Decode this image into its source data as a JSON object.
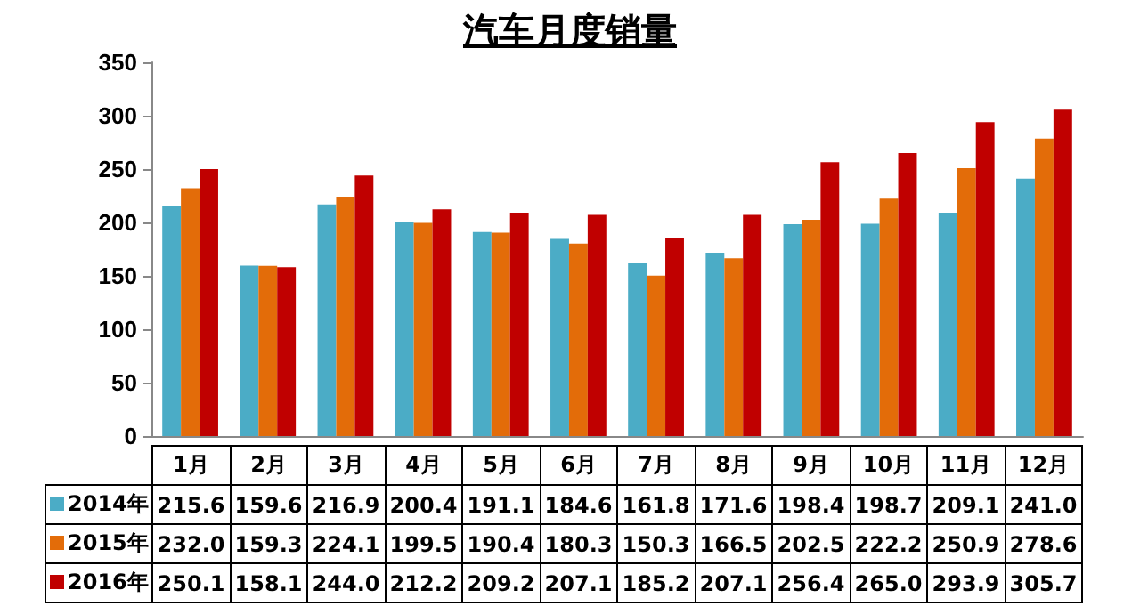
{
  "chart_data": {
    "type": "bar",
    "title": "汽车月度销量",
    "categories": [
      "1月",
      "2月",
      "3月",
      "4月",
      "5月",
      "6月",
      "7月",
      "8月",
      "9月",
      "10月",
      "11月",
      "12月"
    ],
    "series": [
      {
        "name": "2014年",
        "color": "#4bacc6",
        "values": [
          215.6,
          159.6,
          216.9,
          200.4,
          191.1,
          184.6,
          161.8,
          171.6,
          198.4,
          198.7,
          209.1,
          241.0
        ],
        "value_labels": [
          "215.6",
          "159.6",
          "216.9",
          "200.4",
          "191.1",
          "184.6",
          "161.8",
          "171.6",
          "198.4",
          "198.7",
          "209.1",
          "241.0"
        ]
      },
      {
        "name": "2015年",
        "color": "#e36c09",
        "values": [
          232.0,
          159.3,
          224.1,
          199.5,
          190.4,
          180.3,
          150.3,
          166.5,
          202.5,
          222.2,
          250.9,
          278.6
        ],
        "value_labels": [
          "232.0",
          "159.3",
          "224.1",
          "199.5",
          "190.4",
          "180.3",
          "150.3",
          "166.5",
          "202.5",
          "222.2",
          "250.9",
          "278.6"
        ]
      },
      {
        "name": "2016年",
        "color": "#c00000",
        "values": [
          250.1,
          158.1,
          244.0,
          212.2,
          209.2,
          207.1,
          185.2,
          207.1,
          256.4,
          265.0,
          293.9,
          305.7
        ],
        "value_labels": [
          "250.1",
          "158.1",
          "244.0",
          "212.2",
          "209.2",
          "207.1",
          "185.2",
          "207.1",
          "256.4",
          "265.0",
          "293.9",
          "305.7"
        ]
      }
    ],
    "ylim": [
      0,
      350
    ],
    "yticks": [
      0,
      50,
      100,
      150,
      200,
      250,
      300,
      350
    ],
    "grid": false,
    "legend": "bottom"
  }
}
